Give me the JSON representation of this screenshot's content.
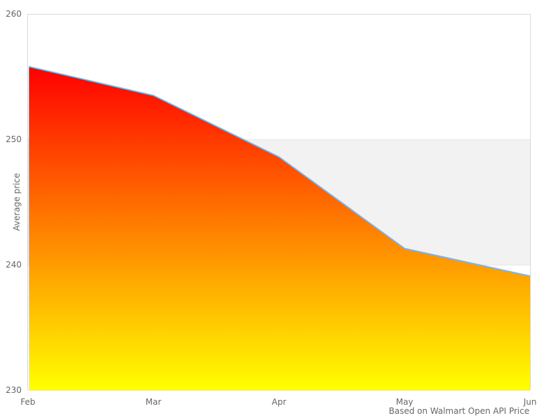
{
  "chart_data": {
    "type": "area",
    "categories": [
      "Feb",
      "Mar",
      "Apr",
      "May",
      "Jun"
    ],
    "values": [
      255.8,
      253.5,
      248.6,
      241.3,
      239.1
    ],
    "title": "",
    "xlabel": "",
    "ylabel": "Average price",
    "ylim": [
      230,
      260
    ],
    "yticks": [
      260,
      250,
      240,
      230
    ],
    "grid": "off",
    "legend": "none",
    "caption": "Based on Walmart Open API Price",
    "plot_band": {
      "from": 240,
      "to": 250
    }
  },
  "colors": {
    "line": "#7cb5ec",
    "gradient_top": "#ff0000",
    "gradient_bottom": "#ffff00",
    "plot_band": "#f2f2f2",
    "gridline": "#e6e6e6",
    "plot_border": "#d9d9d9",
    "label": "#666666",
    "background": "#ffffff"
  }
}
